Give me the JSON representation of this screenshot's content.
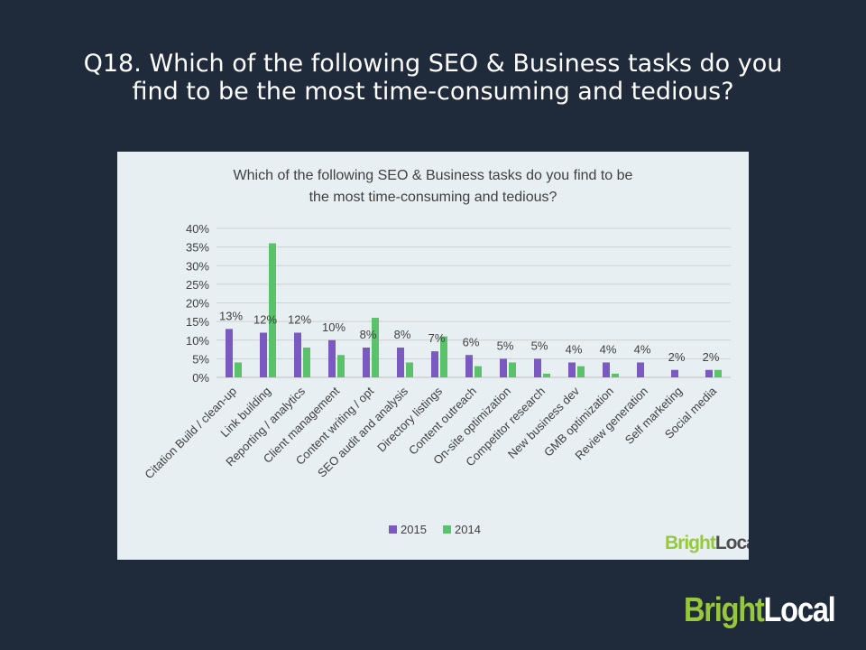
{
  "slide": {
    "title_line1": "Q18. Which of the following SEO & Business tasks do you",
    "title_line2": "find to be the most time-consuming and tedious?"
  },
  "logo": {
    "part1": "Bright",
    "part2": "Local"
  },
  "chart_data": {
    "type": "bar",
    "title": "Which of the following SEO & Business tasks do you find to be the most time-consuming and tedious?",
    "title_line1": "Which of the following SEO & Business tasks do you find to be",
    "title_line2": "the most time-consuming and tedious?",
    "categories": [
      "Citation Build / clean-up",
      "Link building",
      "Reporting / analytics",
      "Client management",
      "Content writing / opt",
      "SEO audit and analysis",
      "Directory listings",
      "Content outreach",
      "On-site optimization",
      "Competitor research",
      "New business dev",
      "GMB optimization",
      "Review generation",
      "Self marketing",
      "Social media"
    ],
    "series": [
      {
        "name": "2015",
        "color": "#7a59c1",
        "values": [
          13,
          12,
          12,
          10,
          8,
          8,
          7,
          6,
          5,
          5,
          4,
          4,
          4,
          2,
          2
        ]
      },
      {
        "name": "2014",
        "color": "#59c26b",
        "values": [
          4,
          36,
          8,
          6,
          16,
          4,
          11,
          3,
          4,
          1,
          3,
          1,
          0,
          0,
          2
        ]
      }
    ],
    "data_labels": [
      "13%",
      "12%",
      "12%",
      "10%",
      "8%",
      "8%",
      "7%",
      "6%",
      "5%",
      "5%",
      "4%",
      "4%",
      "4%",
      "2%",
      "2%"
    ],
    "yticks": [
      "0%",
      "5%",
      "10%",
      "15%",
      "20%",
      "25%",
      "30%",
      "35%",
      "40%"
    ],
    "ylim": [
      0,
      40
    ],
    "grid": true,
    "legend_position": "bottom",
    "watermark": {
      "part1": "Bright",
      "part2": "Local"
    }
  }
}
